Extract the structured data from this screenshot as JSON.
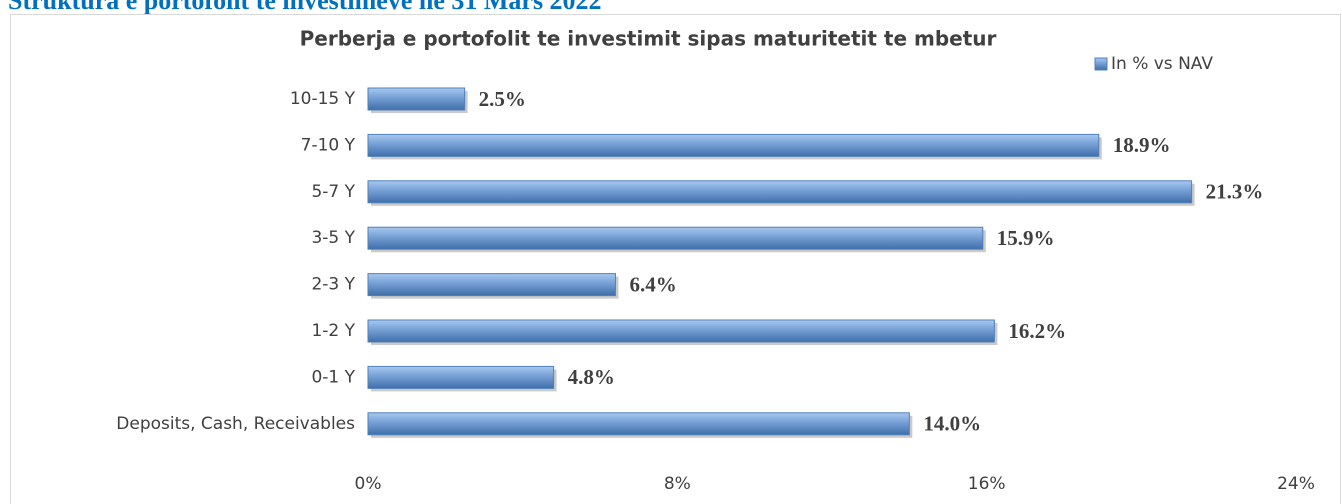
{
  "heading": "Struktura e portofolit te investimeve ne 31 Mars 2022",
  "chart_data": {
    "type": "bar",
    "orientation": "horizontal",
    "title": "Perberja e portofolit te investimit sipas maturitetit te mbetur",
    "categories": [
      "10-15 Y",
      "7-10 Y",
      "5-7 Y",
      "3-5 Y",
      "2-3 Y",
      "1-2 Y",
      "0-1 Y",
      "Deposits, Cash, Receivables"
    ],
    "series": [
      {
        "name": "In % vs NAV",
        "color": "#4f81bd",
        "values": [
          2.5,
          18.9,
          21.3,
          15.9,
          6.4,
          16.2,
          4.8,
          14.0
        ],
        "value_labels": [
          "2.5%",
          "18.9%",
          "21.3%",
          "15.9%",
          "6.4%",
          "16.2%",
          "4.8%",
          "14.0%"
        ]
      }
    ],
    "xlim": [
      0,
      24
    ],
    "xticks": [
      {
        "value": 0,
        "label": "0%"
      },
      {
        "value": 8,
        "label": "8%"
      },
      {
        "value": 16,
        "label": "16%"
      },
      {
        "value": 24,
        "label": "24%"
      }
    ],
    "legend": "top-right",
    "grid": false
  }
}
